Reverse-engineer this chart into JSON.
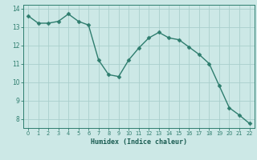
{
  "x": [
    0,
    1,
    2,
    3,
    4,
    5,
    6,
    7,
    8,
    9,
    10,
    11,
    12,
    13,
    14,
    15,
    16,
    17,
    18,
    19,
    20,
    21,
    22
  ],
  "y": [
    13.6,
    13.2,
    13.2,
    13.3,
    13.7,
    13.3,
    13.1,
    11.2,
    10.4,
    10.3,
    11.2,
    11.85,
    12.4,
    12.7,
    12.4,
    12.3,
    11.9,
    11.5,
    11.0,
    9.8,
    8.6,
    8.2,
    7.75
  ],
  "xlabel": "Humidex (Indice chaleur)",
  "ylim": [
    7.5,
    14.2
  ],
  "xlim": [
    -0.5,
    22.5
  ],
  "yticks": [
    8,
    9,
    10,
    11,
    12,
    13,
    14
  ],
  "xtick_labels": [
    "0",
    "1",
    "2",
    "3",
    "4",
    "5",
    "6",
    "7",
    "8",
    "9",
    "10",
    "11",
    "12",
    "13",
    "14",
    "15",
    "16",
    "17",
    "18",
    "19",
    "20",
    "21",
    "22"
  ],
  "line_color": "#2e7d6e",
  "marker_color": "#2e7d6e",
  "bg_color": "#cce8e6",
  "grid_color": "#aacfcc",
  "spine_color": "#2e7d6e",
  "tick_label_color": "#2e7d6e",
  "xlabel_color": "#1a5c52",
  "marker_size": 2.5,
  "line_width": 1.0
}
